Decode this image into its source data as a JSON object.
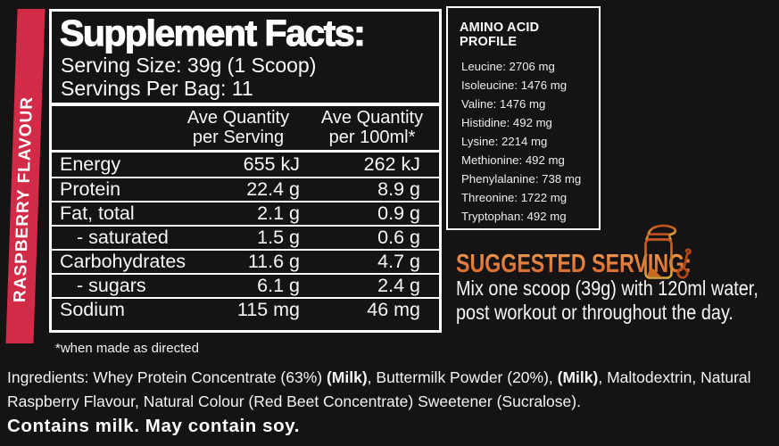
{
  "flavour_banner": {
    "label": "RASPBERRY FLAVOUR",
    "color": "#d12b47"
  },
  "supplement_facts": {
    "title": "Supplement Facts:",
    "serving_size": "Serving Size: 39g (1 Scoop)",
    "servings_per_bag": "Servings Per Bag:  11",
    "columns": [
      {
        "line1": "Ave Quantity",
        "line2": "per Serving"
      },
      {
        "line1": "Ave Quantity",
        "line2": "per 100ml*"
      }
    ],
    "rows": [
      {
        "label": "Energy",
        "per_serving": "655 kJ",
        "per_100ml": "262 kJ",
        "indent": false
      },
      {
        "label": "Protein",
        "per_serving": "22.4 g",
        "per_100ml": "8.9 g",
        "indent": false
      },
      {
        "label": "Fat, total",
        "per_serving": "2.1 g",
        "per_100ml": "0.9 g",
        "indent": false
      },
      {
        "label": "- saturated",
        "per_serving": "1.5 g",
        "per_100ml": "0.6 g",
        "indent": true
      },
      {
        "label": "Carbohydrates",
        "per_serving": "11.6 g",
        "per_100ml": "4.7 g",
        "indent": false
      },
      {
        "label": "- sugars",
        "per_serving": "6.1 g",
        "per_100ml": "2.4 g",
        "indent": true
      },
      {
        "label": "Sodium",
        "per_serving": "115 mg",
        "per_100ml": "46 mg",
        "indent": false
      }
    ],
    "footnote": "*when made as directed"
  },
  "amino_acid_profile": {
    "title": "AMINO ACID PROFILE",
    "items": [
      "Leucine: 2706 mg",
      "Isoleucine: 1476 mg",
      "Valine: 1476 mg",
      "Histidine: 492 mg",
      "Lysine: 2214 mg",
      "Methionine: 492 mg",
      "Phenylalanine: 738 mg",
      "Threonine: 1722 mg",
      "Tryptophan: 492 mg"
    ]
  },
  "suggested_serving": {
    "title": "SUGGESTED SERVING:",
    "line1": "Mix one scoop (39g) with 120ml water,",
    "line2": "post workout or throughout the day.",
    "accent_color": "#e0763c",
    "icon": "shaker-bottle-and-scoop-icon"
  },
  "ingredients": {
    "segments": [
      {
        "text": "Ingredients: Whey Protein Concentrate (63%) ",
        "bold": false
      },
      {
        "text": "(Milk)",
        "bold": true
      },
      {
        "text": ", Buttermilk Powder (20%), ",
        "bold": false
      },
      {
        "text": "(Milk)",
        "bold": true
      },
      {
        "text": ", Maltodextrin, Natural Raspberry Flavour, Natural Colour (Red Beet Concentrate) Sweetener (Sucralose).",
        "bold": false
      }
    ]
  },
  "allergen_statement": "Contains milk. May contain soy."
}
